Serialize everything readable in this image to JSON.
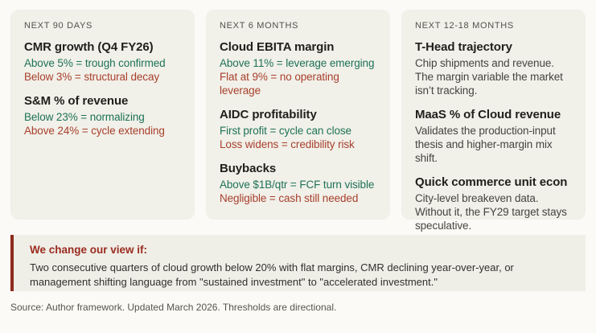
{
  "colors": {
    "page_background": "#fbfaf6",
    "card_background": "#f1f0e9",
    "callout_background": "#efeee7",
    "positive_text": "#1e7257",
    "negative_text": "#a8402c",
    "callout_accent": "#8e2a1d",
    "callout_heading": "#9a2c1f"
  },
  "cards": [
    {
      "label": "NEXT 90 DAYS",
      "groups": [
        {
          "title": "CMR growth (Q4 FY26)",
          "lines": [
            {
              "tone": "good",
              "text": "Above 5% = trough confirmed"
            },
            {
              "tone": "bad",
              "text": "Below 3% = structural decay"
            }
          ]
        },
        {
          "title": "S&M % of revenue",
          "lines": [
            {
              "tone": "good",
              "text": "Below 23% = normalizing"
            },
            {
              "tone": "bad",
              "text": "Above 24% = cycle extending"
            }
          ]
        }
      ]
    },
    {
      "label": "NEXT 6 MONTHS",
      "groups": [
        {
          "title": "Cloud EBITA margin",
          "lines": [
            {
              "tone": "good",
              "text": "Above 11% = leverage emerging"
            },
            {
              "tone": "bad",
              "text": "Flat at 9% = no operating leverage"
            }
          ]
        },
        {
          "title": "AIDC profitability",
          "lines": [
            {
              "tone": "good",
              "text": "First profit = cycle can close"
            },
            {
              "tone": "bad",
              "text": "Loss widens = credibility risk"
            }
          ]
        },
        {
          "title": "Buybacks",
          "lines": [
            {
              "tone": "good",
              "text": "Above $1B/qtr = FCF turn visible"
            },
            {
              "tone": "bad",
              "text": "Negligible = cash still needed"
            }
          ]
        }
      ]
    },
    {
      "label": "NEXT 12-18 MONTHS",
      "groups": [
        {
          "title": "T-Head trajectory",
          "body": "Chip shipments and revenue. The margin variable the market isn’t tracking."
        },
        {
          "title": "MaaS % of Cloud revenue",
          "body": "Validates the production-input thesis and higher-margin mix shift."
        },
        {
          "title": "Quick commerce unit econ",
          "body": "City-level breakeven data. Without it, the FY29 target stays speculative."
        }
      ]
    }
  ],
  "callout": {
    "title": "We change our view if:",
    "body": "Two consecutive quarters of cloud growth below 20% with flat margins, CMR declining year-over-year, or management shifting language from \"sustained investment\" to \"accelerated investment.\""
  },
  "source": "Source: Author framework. Updated March 2026. Thresholds are directional."
}
